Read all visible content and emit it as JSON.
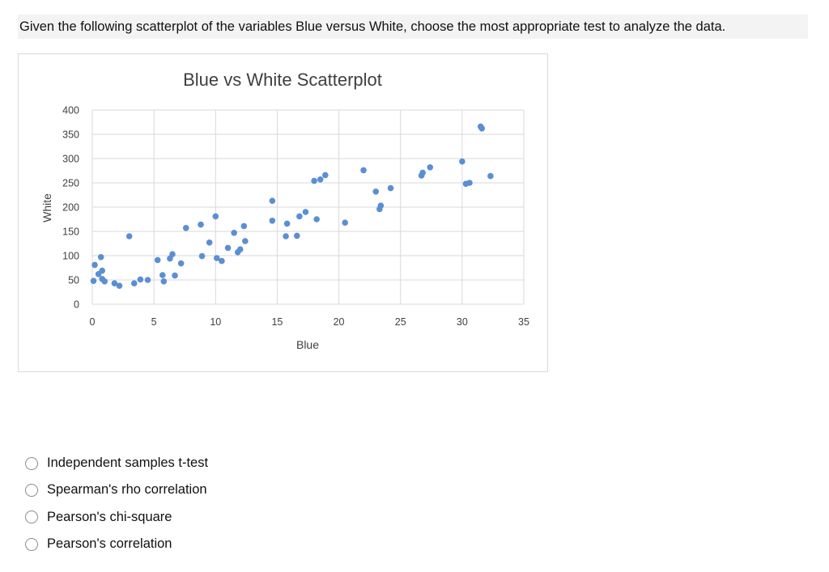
{
  "question": {
    "text": "Given the following scatterplot of the variables Blue versus White, choose the most appropriate test to analyze the data."
  },
  "chart_data": {
    "type": "scatter",
    "title": "Blue vs White Scatterplot",
    "xlabel": "Blue",
    "ylabel": "White",
    "xlim": [
      0,
      35
    ],
    "ylim": [
      0,
      400
    ],
    "xticks": [
      0,
      5,
      10,
      15,
      20,
      25,
      30,
      35
    ],
    "yticks": [
      0,
      50,
      100,
      150,
      200,
      250,
      300,
      350,
      400
    ],
    "grid": true,
    "marker_color": "#5b8fd3",
    "points": [
      [
        0.1,
        48
      ],
      [
        0.2,
        81
      ],
      [
        0.5,
        62
      ],
      [
        0.7,
        97
      ],
      [
        0.8,
        69
      ],
      [
        0.8,
        52
      ],
      [
        1.0,
        47
      ],
      [
        1.8,
        43
      ],
      [
        2.2,
        38
      ],
      [
        3.0,
        140
      ],
      [
        3.4,
        43
      ],
      [
        3.9,
        51
      ],
      [
        4.5,
        50
      ],
      [
        5.3,
        91
      ],
      [
        5.7,
        60
      ],
      [
        5.8,
        47
      ],
      [
        6.3,
        94
      ],
      [
        6.5,
        103
      ],
      [
        6.7,
        59
      ],
      [
        7.2,
        84
      ],
      [
        7.6,
        157
      ],
      [
        8.8,
        164
      ],
      [
        8.9,
        99
      ],
      [
        9.5,
        127
      ],
      [
        10.0,
        181
      ],
      [
        10.1,
        95
      ],
      [
        10.5,
        89
      ],
      [
        11.0,
        116
      ],
      [
        11.5,
        147
      ],
      [
        11.8,
        107
      ],
      [
        12.0,
        113
      ],
      [
        12.3,
        161
      ],
      [
        12.4,
        130
      ],
      [
        14.6,
        213
      ],
      [
        14.6,
        172
      ],
      [
        15.7,
        140
      ],
      [
        15.8,
        166
      ],
      [
        16.6,
        141
      ],
      [
        16.8,
        181
      ],
      [
        17.3,
        190
      ],
      [
        18.0,
        254
      ],
      [
        18.2,
        175
      ],
      [
        18.5,
        257
      ],
      [
        18.9,
        266
      ],
      [
        20.5,
        168
      ],
      [
        22.0,
        276
      ],
      [
        23.0,
        232
      ],
      [
        23.3,
        196
      ],
      [
        23.4,
        203
      ],
      [
        24.2,
        239
      ],
      [
        26.7,
        265
      ],
      [
        26.8,
        271
      ],
      [
        27.4,
        282
      ],
      [
        30.0,
        294
      ],
      [
        30.3,
        248
      ],
      [
        30.6,
        250
      ],
      [
        31.5,
        366
      ],
      [
        31.6,
        362
      ],
      [
        32.3,
        264
      ]
    ]
  },
  "options": [
    {
      "label": "Independent samples t-test"
    },
    {
      "label": "Spearman's rho correlation"
    },
    {
      "label": "Pearson's chi-square"
    },
    {
      "label": "Pearson's correlation"
    }
  ]
}
